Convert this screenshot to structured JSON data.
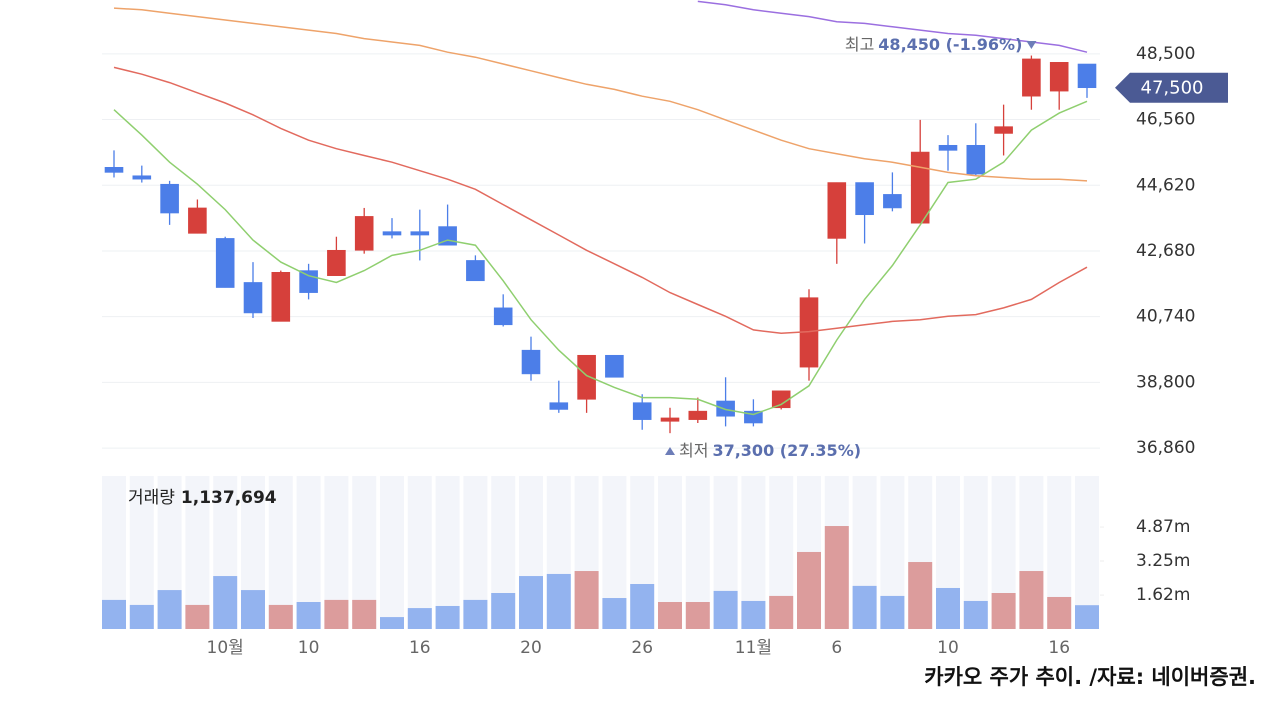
{
  "chart_data": [
    {
      "type": "candlestick",
      "categories": [
        null,
        null,
        null,
        null,
        "10월",
        null,
        null,
        "10",
        null,
        null,
        null,
        "16",
        null,
        null,
        null,
        "20",
        null,
        null,
        null,
        "26",
        null,
        null,
        null,
        "11월",
        null,
        null,
        "6",
        null,
        null,
        null,
        "10",
        null,
        null,
        null,
        "16",
        null
      ],
      "open": [
        45150,
        44900,
        44650,
        43200,
        43050,
        41750,
        40600,
        42100,
        41950,
        42700,
        43250,
        43250,
        43400,
        42400,
        41000,
        39750,
        38200,
        38300,
        39600,
        38200,
        37650,
        37700,
        38250,
        37950,
        38050,
        39250,
        43050,
        44700,
        44350,
        43500,
        45800,
        45800,
        46150,
        47250,
        47400,
        48200
      ],
      "high": [
        45650,
        45200,
        44750,
        44200,
        43100,
        42350,
        42100,
        42300,
        43100,
        43950,
        43650,
        43900,
        44050,
        42550,
        41400,
        40150,
        38850,
        39600,
        39600,
        38450,
        38050,
        38350,
        38950,
        38300,
        38550,
        41550,
        44700,
        44700,
        45000,
        46550,
        46100,
        46450,
        47000,
        48450,
        48250,
        48200
      ],
      "low": [
        44850,
        44700,
        43450,
        43200,
        41600,
        40700,
        40600,
        41250,
        41950,
        42600,
        43050,
        42400,
        42850,
        41800,
        40450,
        38850,
        37900,
        37900,
        38950,
        37400,
        37300,
        37600,
        37500,
        37500,
        38000,
        38850,
        42300,
        42900,
        43850,
        43500,
        45050,
        44900,
        45500,
        46850,
        46850,
        47200
      ],
      "close": [
        45000,
        44800,
        43800,
        43950,
        41600,
        40850,
        42050,
        41450,
        42700,
        43700,
        43150,
        43150,
        42850,
        41800,
        40500,
        39050,
        38000,
        39600,
        38950,
        37700,
        37750,
        37950,
        37800,
        37600,
        38550,
        41300,
        44700,
        43750,
        43950,
        45600,
        45650,
        44950,
        46350,
        48350,
        48250,
        47500
      ],
      "up_color": "#d6403b",
      "down_color": "#4c7ee8",
      "series": [
        {
          "color": "#8fcf6f",
          "values": [
            46850,
            46100,
            45300,
            44650,
            43900,
            43000,
            42350,
            41950,
            41750,
            42100,
            42550,
            42700,
            43000,
            42850,
            41800,
            40650,
            39750,
            39000,
            38650,
            38350,
            38350,
            38300,
            38000,
            37850,
            38150,
            38700,
            40050,
            41250,
            42250,
            43450,
            44700,
            44800,
            45300,
            46250,
            46750,
            47100
          ]
        },
        {
          "color": "#e26a5e",
          "values": [
            48100,
            47900,
            47650,
            47350,
            47050,
            46700,
            46300,
            45950,
            45700,
            45500,
            45300,
            45050,
            44800,
            44500,
            44050,
            43600,
            43150,
            42700,
            42300,
            41900,
            41450,
            41100,
            40750,
            40350,
            40250,
            40300,
            40400,
            40500,
            40600,
            40650,
            40750,
            40800,
            41000,
            41250,
            41750,
            42200
          ]
        },
        {
          "color": "#eea36a",
          "values": [
            49850,
            49800,
            49700,
            49600,
            49500,
            49400,
            49300,
            49200,
            49100,
            48950,
            48850,
            48750,
            48550,
            48400,
            48200,
            48000,
            47800,
            47600,
            47450,
            47250,
            47100,
            46850,
            46550,
            46250,
            45950,
            45700,
            45550,
            45400,
            45300,
            45150,
            45000,
            44900,
            44850,
            44800,
            44800,
            44750
          ]
        },
        {
          "color": "#9b6fe0",
          "values": [
            null,
            null,
            null,
            null,
            null,
            null,
            null,
            null,
            null,
            null,
            null,
            null,
            null,
            null,
            null,
            null,
            null,
            null,
            null,
            null,
            null,
            50050,
            49950,
            49800,
            49700,
            49600,
            49450,
            49400,
            49300,
            49200,
            49100,
            49050,
            48950,
            48850,
            48750,
            48550
          ]
        }
      ],
      "ylim": [
        36360,
        50090
      ],
      "yticks": [
        {
          "value": 36860,
          "label": "36,860"
        },
        {
          "value": 38800,
          "label": "38,800"
        },
        {
          "value": 40740,
          "label": "40,740"
        },
        {
          "value": 42680,
          "label": "42,680"
        },
        {
          "value": 44620,
          "label": "44,620"
        },
        {
          "value": 46560,
          "label": "46,560"
        },
        {
          "value": 48500,
          "label": "48,500"
        }
      ],
      "grid": true,
      "high_label": "최고",
      "high_value_label": "48,450 (-1.96%)",
      "low_label": "최저",
      "low_value_label": "37,300 (27.35%)",
      "last_price_label": "47,500",
      "badge_color": "#4b5a94"
    },
    {
      "type": "bar",
      "title": "거래량",
      "last_value_label": "1,137,694",
      "values": [
        1390000,
        1150000,
        1860000,
        1150000,
        2530000,
        1860000,
        1150000,
        1290000,
        1390000,
        1390000,
        570000,
        1000000,
        1100000,
        1390000,
        1720000,
        2530000,
        2630000,
        2770000,
        1480000,
        2150000,
        1290000,
        1290000,
        1820000,
        1340000,
        1580000,
        3680000,
        4920000,
        2060000,
        1580000,
        3200000,
        1960000,
        1340000,
        1720000,
        2770000,
        1530000,
        1137694
      ],
      "up_color": "#dc9c9c",
      "down_color": "#93b3ef",
      "ylim": [
        0,
        7310000
      ],
      "yticks": [
        {
          "value": 1620000,
          "label": "1.62m"
        },
        {
          "value": 3250000,
          "label": "3.25m"
        },
        {
          "value": 4870000,
          "label": "4.87m"
        }
      ]
    }
  ],
  "caption": "카카오 주가 추이. /자료: 네이버증권."
}
